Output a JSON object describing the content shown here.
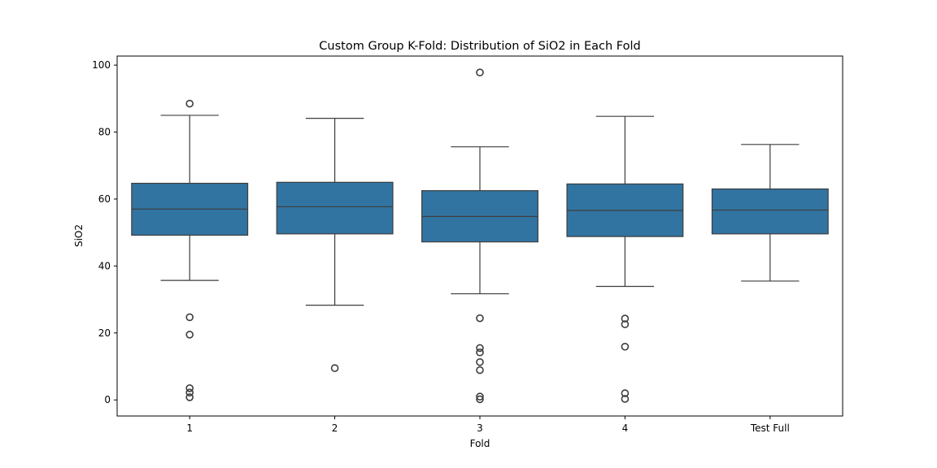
{
  "chart_data": {
    "type": "box",
    "title": "Custom Group K-Fold: Distribution of SiO2 in Each Fold",
    "xlabel": "Fold",
    "ylabel": "SiO2",
    "ylim": [
      -4.8,
      102.7
    ],
    "yticks": [
      0,
      20,
      40,
      60,
      80,
      100
    ],
    "grid": false,
    "box_color": "#3274a1",
    "line_color": "#3d3d3d",
    "categories": [
      "1",
      "2",
      "3",
      "4",
      "Test Full"
    ],
    "boxes": [
      {
        "category": "1",
        "whisker_low": 35.7,
        "q1": 49.2,
        "median": 57.0,
        "q3": 64.7,
        "whisker_high": 85.0,
        "outliers": [
          88.5,
          24.7,
          19.5,
          3.5,
          2.2,
          0.8
        ]
      },
      {
        "category": "2",
        "whisker_low": 28.3,
        "q1": 49.6,
        "median": 57.7,
        "q3": 65.0,
        "whisker_high": 84.1,
        "outliers": [
          9.5
        ]
      },
      {
        "category": "3",
        "whisker_low": 31.7,
        "q1": 47.2,
        "median": 54.8,
        "q3": 62.5,
        "whisker_high": 75.6,
        "outliers": [
          97.8,
          24.4,
          15.5,
          14.2,
          11.3,
          8.9,
          1.0,
          0.2
        ]
      },
      {
        "category": "4",
        "whisker_low": 33.9,
        "q1": 48.8,
        "median": 56.6,
        "q3": 64.5,
        "whisker_high": 84.7,
        "outliers": [
          24.3,
          22.6,
          15.9,
          2.0,
          0.3
        ]
      },
      {
        "category": "Test Full",
        "whisker_low": 35.5,
        "q1": 49.6,
        "median": 56.7,
        "q3": 63.0,
        "whisker_high": 76.3,
        "outliers": []
      }
    ]
  }
}
